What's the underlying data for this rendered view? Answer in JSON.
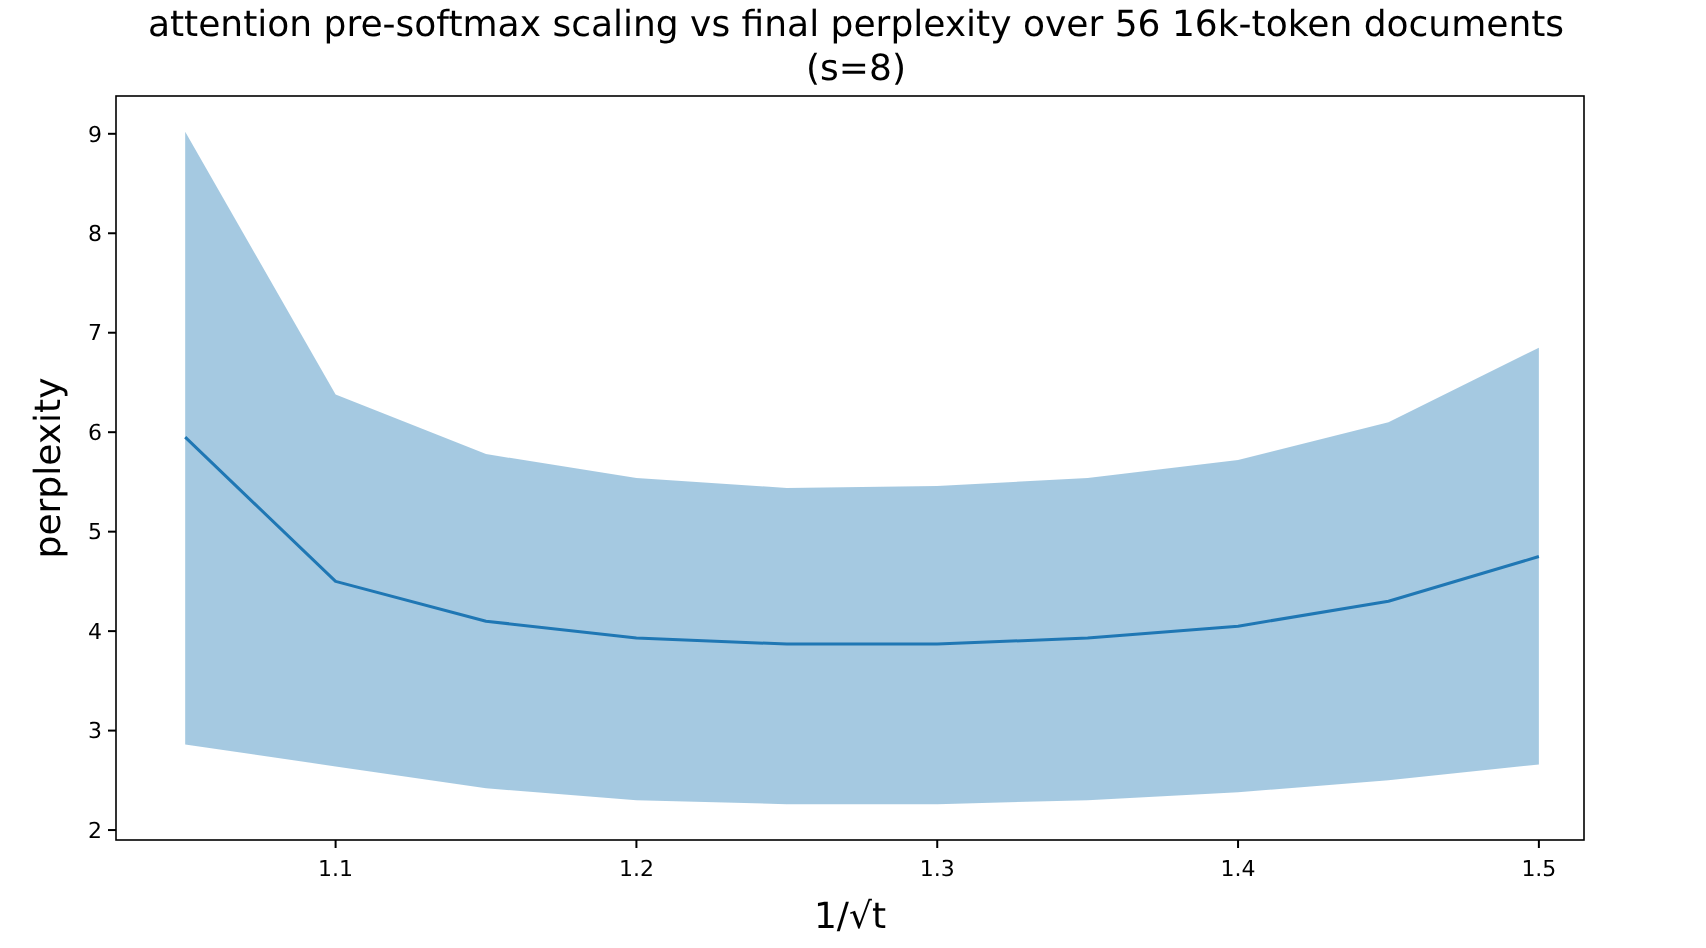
{
  "chart_data": {
    "type": "line",
    "title": "attention pre-softmax scaling vs final perplexity over 56 16k-token documents\n(s=8)",
    "xlabel": "1/√t",
    "ylabel": "perplexity",
    "x": [
      1.05,
      1.1,
      1.15,
      1.2,
      1.25,
      1.3,
      1.35,
      1.4,
      1.45,
      1.5
    ],
    "series": [
      {
        "color": "#1f77b4",
        "values": [
          5.95,
          4.5,
          4.1,
          3.93,
          3.87,
          3.87,
          3.93,
          4.05,
          4.3,
          4.75
        ],
        "lower": [
          2.86,
          2.64,
          2.42,
          2.3,
          2.26,
          2.26,
          2.3,
          2.38,
          2.5,
          2.66
        ],
        "upper": [
          9.02,
          6.38,
          5.78,
          5.54,
          5.44,
          5.46,
          5.54,
          5.72,
          6.1,
          6.85
        ]
      }
    ],
    "xlim": [
      1.027,
      1.515
    ],
    "ylim": [
      1.9,
      9.38
    ],
    "xticks": [
      1.1,
      1.2,
      1.3,
      1.4,
      1.5
    ],
    "yticks": [
      2,
      3,
      4,
      5,
      6,
      7,
      8,
      9
    ],
    "grid": false,
    "marker": "none",
    "line_style": "solid"
  }
}
